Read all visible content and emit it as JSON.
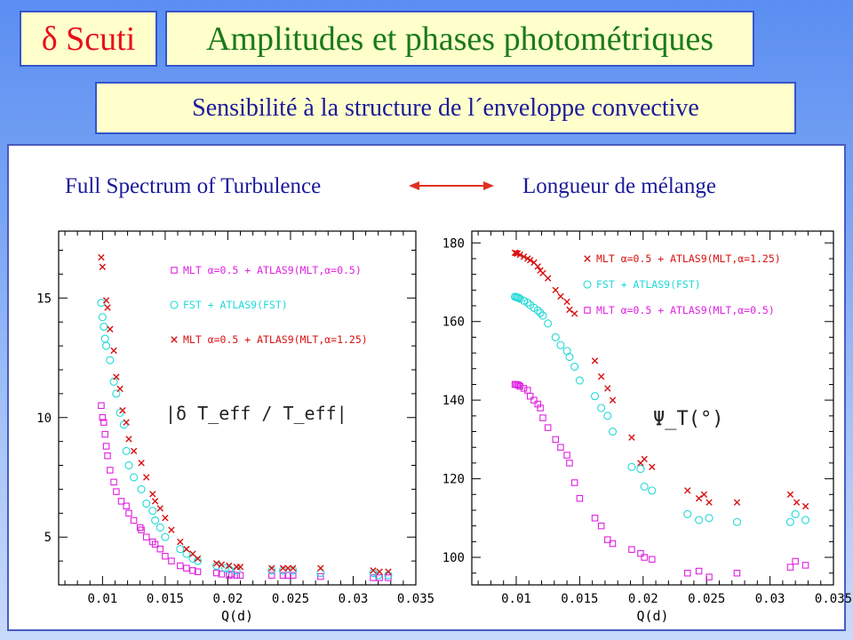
{
  "header": {
    "scuti": "δ Scuti",
    "title": "Amplitudes et phases photométriques",
    "subtitle": "Sensibilité à la structure de l´enveloppe convective"
  },
  "comparison": {
    "left_label": "Full Spectrum of Turbulence",
    "right_label": "Longueur de mélange",
    "arrow_color": "#e0301e"
  },
  "chart_data": [
    {
      "type": "scatter",
      "annotation": "|δ T_eff / T_eff|",
      "xlabel": "Q(d)",
      "ylabel": "",
      "xlim": [
        0.0065,
        0.035
      ],
      "ylim": [
        3,
        17.8
      ],
      "xticks": [
        0.01,
        0.015,
        0.02,
        0.025,
        0.03,
        0.035
      ],
      "xtick_labels": [
        "0.01",
        "0.015",
        "0.02",
        "0.025",
        "0.03",
        "0.035"
      ],
      "yticks": [
        5,
        10,
        15
      ],
      "ytick_labels": [
        "5",
        "10",
        "15"
      ],
      "grid": false,
      "legend_position": "top-right",
      "series": [
        {
          "name": "MLT α=0.5 + ATLAS9(MLT,α=0.5)",
          "marker": "square",
          "color": "#e020e0",
          "x": [
            0.0099,
            0.01,
            0.0101,
            0.0102,
            0.0103,
            0.0104,
            0.0106,
            0.0109,
            0.0111,
            0.0115,
            0.0119,
            0.0121,
            0.0125,
            0.013,
            0.0131,
            0.0135,
            0.014,
            0.0142,
            0.0146,
            0.015,
            0.0155,
            0.0162,
            0.0167,
            0.0172,
            0.0176,
            0.0191,
            0.0195,
            0.0201,
            0.0203,
            0.0207,
            0.021,
            0.0235,
            0.0244,
            0.0248,
            0.0252,
            0.0274,
            0.0316,
            0.0321,
            0.0328
          ],
          "y": [
            10.5,
            10.0,
            9.8,
            9.3,
            8.8,
            8.4,
            7.8,
            7.3,
            6.9,
            6.5,
            6.3,
            6.0,
            5.7,
            5.4,
            5.3,
            5.0,
            4.8,
            4.7,
            4.5,
            4.2,
            4.0,
            3.8,
            3.7,
            3.6,
            3.55,
            3.5,
            3.45,
            3.4,
            3.45,
            3.4,
            3.4,
            3.4,
            3.4,
            3.4,
            3.4,
            3.35,
            3.3,
            3.3,
            3.3
          ]
        },
        {
          "name": "FST + ATLAS9(FST)",
          "marker": "circle",
          "color": "#22d8d8",
          "x": [
            0.0099,
            0.01,
            0.0101,
            0.0102,
            0.0103,
            0.0106,
            0.0109,
            0.0111,
            0.0114,
            0.0117,
            0.0119,
            0.0121,
            0.0125,
            0.0131,
            0.0135,
            0.014,
            0.0142,
            0.0146,
            0.015,
            0.0162,
            0.0167,
            0.0172,
            0.0176,
            0.0191,
            0.0198,
            0.0201,
            0.0207,
            0.0235,
            0.0244,
            0.0252,
            0.0274,
            0.0316,
            0.032,
            0.0328
          ],
          "y": [
            14.8,
            14.2,
            13.8,
            13.3,
            13.0,
            12.4,
            11.5,
            11.0,
            10.2,
            9.7,
            8.6,
            8.0,
            7.5,
            7.0,
            6.4,
            6.1,
            5.7,
            5.4,
            5.0,
            4.5,
            4.3,
            4.1,
            4.0,
            3.8,
            3.7,
            3.65,
            3.6,
            3.6,
            3.6,
            3.6,
            3.5,
            3.5,
            3.4,
            3.4
          ]
        },
        {
          "name": "MLT α=0.5 + ATLAS9(MLT,α=1.25)",
          "marker": "cross",
          "color": "#d81010",
          "x": [
            0.0099,
            0.01,
            0.0103,
            0.0104,
            0.0106,
            0.0109,
            0.0111,
            0.0114,
            0.0116,
            0.0119,
            0.0121,
            0.0125,
            0.0131,
            0.0135,
            0.014,
            0.0142,
            0.0146,
            0.015,
            0.0155,
            0.0162,
            0.0167,
            0.0172,
            0.0176,
            0.0191,
            0.0195,
            0.0201,
            0.0207,
            0.021,
            0.0235,
            0.0244,
            0.0248,
            0.0252,
            0.0274,
            0.0316,
            0.0321,
            0.0328
          ],
          "y": [
            16.7,
            16.3,
            14.9,
            14.6,
            13.7,
            12.8,
            11.7,
            11.2,
            10.3,
            9.8,
            9.1,
            8.6,
            8.1,
            7.5,
            6.8,
            6.5,
            6.2,
            5.8,
            5.3,
            4.8,
            4.5,
            4.3,
            4.1,
            3.9,
            3.85,
            3.8,
            3.75,
            3.75,
            3.7,
            3.7,
            3.7,
            3.7,
            3.7,
            3.6,
            3.55,
            3.55
          ]
        }
      ]
    },
    {
      "type": "scatter",
      "annotation": "Ψ_T(°)",
      "xlabel": "Q(d)",
      "ylabel": "",
      "xlim": [
        0.0065,
        0.035
      ],
      "ylim": [
        93,
        183
      ],
      "xticks": [
        0.01,
        0.015,
        0.02,
        0.025,
        0.03,
        0.035
      ],
      "xtick_labels": [
        "0.01",
        "0.015",
        "0.02",
        "0.025",
        "0.03",
        "0.035"
      ],
      "yticks": [
        100,
        120,
        140,
        160,
        180
      ],
      "ytick_labels": [
        "100",
        "120",
        "140",
        "160",
        "180"
      ],
      "grid": false,
      "legend_position": "top-right",
      "series": [
        {
          "name": "MLT α=0.5 + ATLAS9(MLT,α=1.25)",
          "marker": "cross",
          "color": "#d81010",
          "x": [
            0.0099,
            0.01,
            0.0101,
            0.0103,
            0.0106,
            0.0109,
            0.0111,
            0.0114,
            0.0117,
            0.0119,
            0.0121,
            0.0125,
            0.0131,
            0.0135,
            0.014,
            0.0142,
            0.0146,
            0.0162,
            0.0167,
            0.0172,
            0.0176,
            0.0191,
            0.0198,
            0.0201,
            0.0207,
            0.0235,
            0.0244,
            0.0248,
            0.0252,
            0.0274,
            0.0316,
            0.0321,
            0.0328
          ],
          "y": [
            177.5,
            177.4,
            177.3,
            177.0,
            176.5,
            176.0,
            175.6,
            175.0,
            174.0,
            173.0,
            172.3,
            171.0,
            168.0,
            166.4,
            165.0,
            163.0,
            162.0,
            150.0,
            146.0,
            143.0,
            140.0,
            130.5,
            124.0,
            125.0,
            123.0,
            117.0,
            115.0,
            116.0,
            114.0,
            114.0,
            116.0,
            114.0,
            113.0
          ]
        },
        {
          "name": "FST + ATLAS9(FST)",
          "marker": "circle",
          "color": "#22d8d8",
          "x": [
            0.0099,
            0.01,
            0.0101,
            0.0102,
            0.0103,
            0.0106,
            0.0109,
            0.0111,
            0.0114,
            0.0117,
            0.0119,
            0.0121,
            0.0125,
            0.0131,
            0.0135,
            0.014,
            0.0142,
            0.0146,
            0.015,
            0.0162,
            0.0167,
            0.0172,
            0.0176,
            0.0191,
            0.0198,
            0.0201,
            0.0207,
            0.0235,
            0.0244,
            0.0252,
            0.0274,
            0.0316,
            0.032,
            0.0328
          ],
          "y": [
            166.3,
            166.2,
            166.1,
            166.0,
            165.8,
            165.3,
            164.8,
            164.2,
            163.5,
            162.8,
            162.2,
            161.5,
            159.5,
            156.0,
            154.0,
            152.5,
            151.0,
            148.5,
            145.0,
            141.0,
            138.0,
            136.0,
            132.0,
            123.0,
            122.5,
            118.0,
            117.0,
            111.0,
            109.5,
            110.0,
            109.0,
            109.0,
            111.0,
            109.5
          ]
        },
        {
          "name": "MLT α=0.5 + ATLAS9(MLT,α=0.5)",
          "marker": "square",
          "color": "#e020e0",
          "x": [
            0.0099,
            0.01,
            0.0101,
            0.0102,
            0.0103,
            0.0106,
            0.0109,
            0.0111,
            0.0114,
            0.0117,
            0.0119,
            0.0121,
            0.0125,
            0.0131,
            0.0135,
            0.014,
            0.0142,
            0.0146,
            0.015,
            0.0162,
            0.0167,
            0.0172,
            0.0176,
            0.0191,
            0.0198,
            0.0201,
            0.0207,
            0.0235,
            0.0244,
            0.0252,
            0.0274,
            0.0316,
            0.032,
            0.0328
          ],
          "y": [
            144.0,
            144.0,
            143.9,
            143.8,
            143.5,
            143.0,
            142.5,
            141.0,
            140.0,
            139.0,
            138.0,
            135.5,
            133.0,
            130.0,
            128.0,
            126.0,
            124.0,
            119.0,
            115.0,
            110.0,
            108.0,
            104.5,
            103.5,
            102.0,
            101.0,
            100.0,
            99.5,
            96.0,
            96.5,
            95.0,
            96.0,
            97.5,
            99.0,
            98.0
          ]
        }
      ]
    }
  ]
}
